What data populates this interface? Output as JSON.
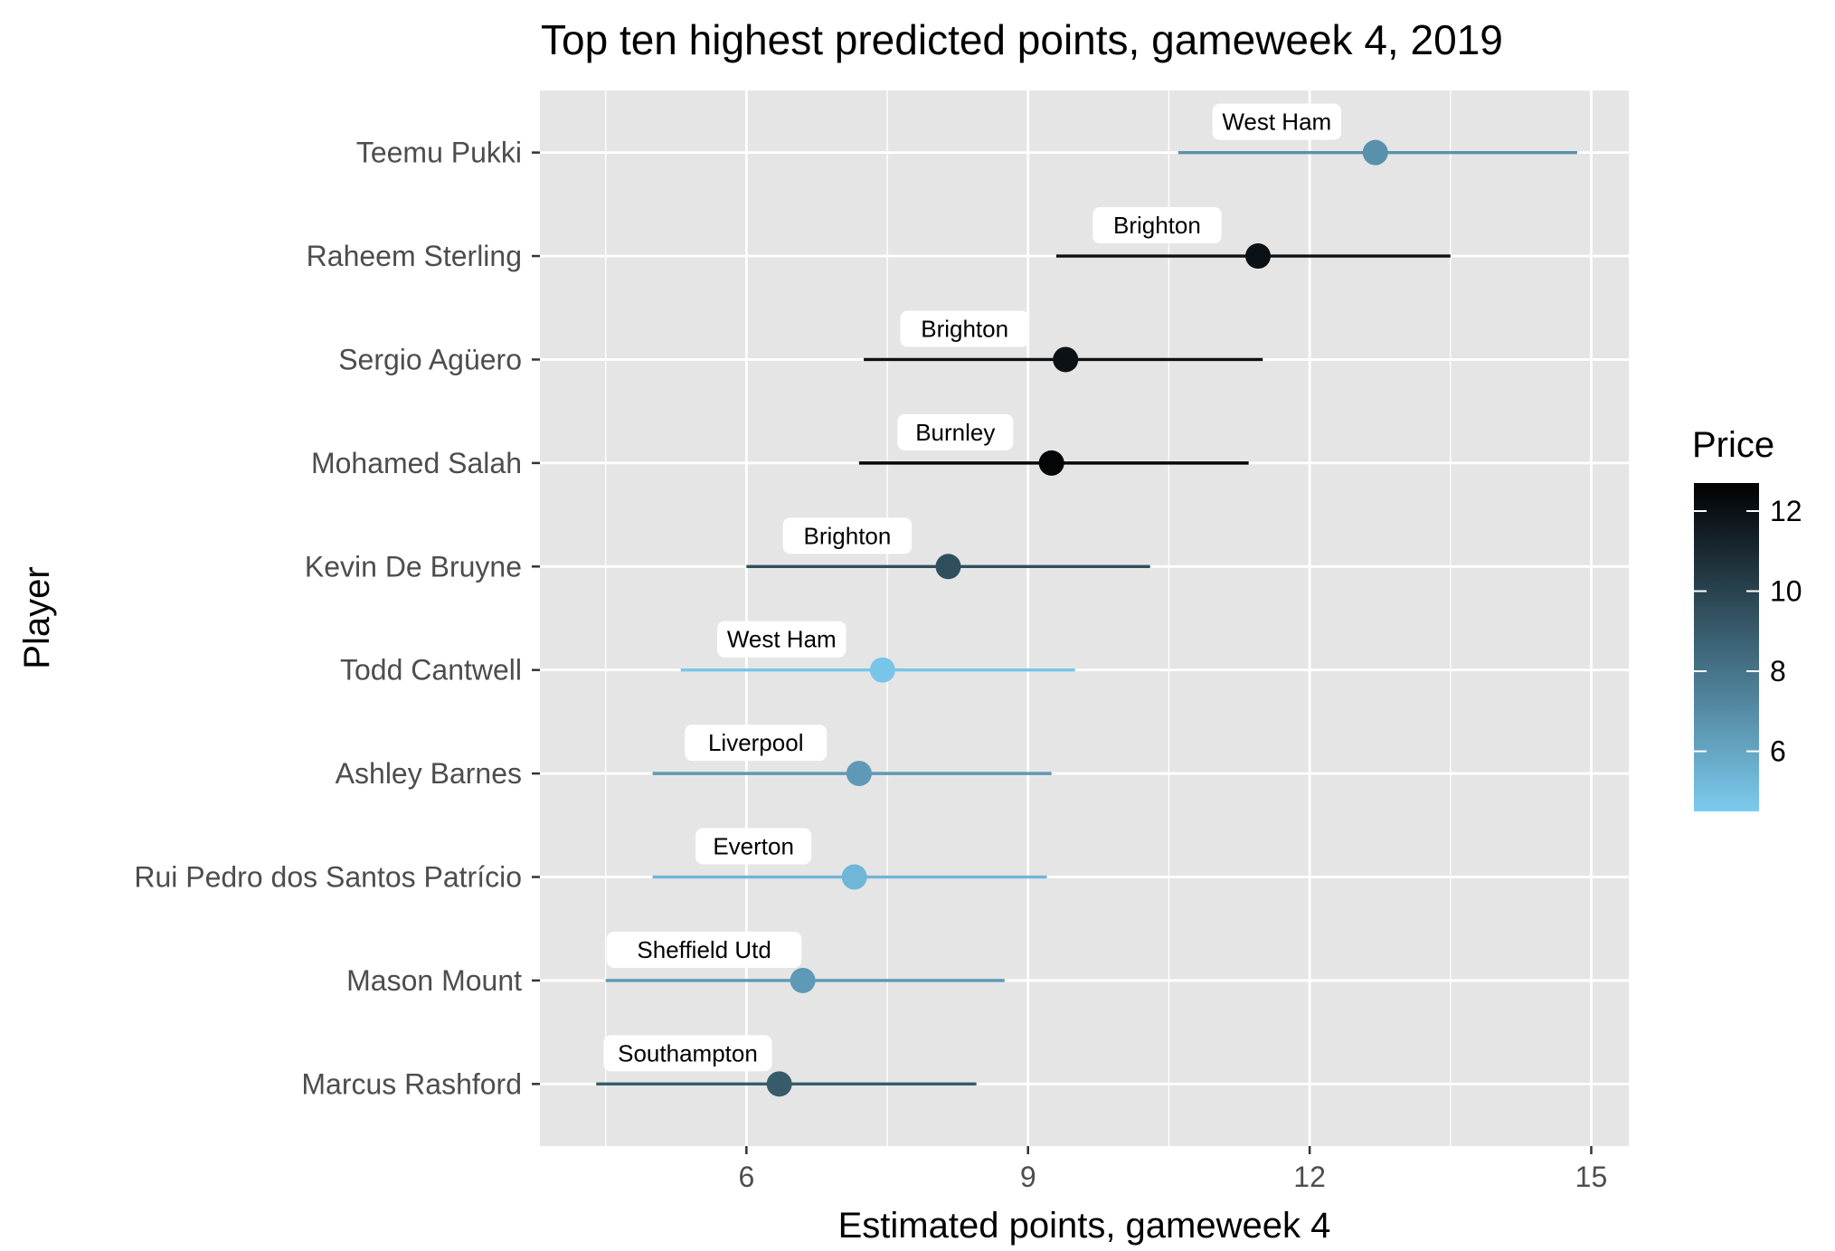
{
  "chart_data": {
    "type": "scatter",
    "title": "Top ten highest predicted points, gameweek 4, 2019",
    "xlabel": "Estimated points, gameweek 4",
    "ylabel": "Player",
    "xlim": [
      3.8,
      15.4
    ],
    "xticks": [
      6,
      9,
      12,
      15
    ],
    "grid": true,
    "legend": {
      "title": "Price",
      "position": "right",
      "ticks": [
        6,
        8,
        10,
        12
      ],
      "range": [
        4.5,
        12.7
      ],
      "color_low": "#7ccaef",
      "color_high": "#000000"
    },
    "players": [
      {
        "name": "Teemu Pukki",
        "estimate": 12.7,
        "low": 10.6,
        "high": 14.85,
        "price": 6.8,
        "opponent": "West Ham"
      },
      {
        "name": "Raheem Sterling",
        "estimate": 11.45,
        "low": 9.3,
        "high": 13.5,
        "price": 12.0,
        "opponent": "Brighton"
      },
      {
        "name": "Sergio Agüero",
        "estimate": 9.4,
        "low": 7.25,
        "high": 11.5,
        "price": 12.0,
        "opponent": "Brighton"
      },
      {
        "name": "Mohamed Salah",
        "estimate": 9.25,
        "low": 7.2,
        "high": 11.35,
        "price": 12.5,
        "opponent": "Burnley"
      },
      {
        "name": "Kevin De Bruyne",
        "estimate": 8.15,
        "low": 6.0,
        "high": 10.3,
        "price": 9.5,
        "opponent": "Brighton"
      },
      {
        "name": "Todd Cantwell",
        "estimate": 7.45,
        "low": 5.3,
        "high": 9.5,
        "price": 4.7,
        "opponent": "West Ham"
      },
      {
        "name": "Ashley Barnes",
        "estimate": 7.2,
        "low": 5.0,
        "high": 9.25,
        "price": 6.5,
        "opponent": "Liverpool"
      },
      {
        "name": "Rui Pedro dos Santos Patrício",
        "estimate": 7.15,
        "low": 5.0,
        "high": 9.2,
        "price": 5.3,
        "opponent": "Everton"
      },
      {
        "name": "Mason Mount",
        "estimate": 6.6,
        "low": 4.5,
        "high": 8.75,
        "price": 6.5,
        "opponent": "Sheffield Utd"
      },
      {
        "name": "Marcus Rashford",
        "estimate": 6.35,
        "low": 4.4,
        "high": 8.45,
        "price": 9.0,
        "opponent": "Southampton"
      }
    ]
  }
}
